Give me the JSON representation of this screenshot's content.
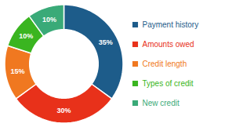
{
  "chart_data": {
    "type": "pie",
    "categories": [
      "Payment history",
      "Amounts owed",
      "Credit length",
      "Types of credit",
      "New credit"
    ],
    "values": [
      35,
      30,
      15,
      10,
      10
    ],
    "value_labels": [
      "35%",
      "30%",
      "15%",
      "10%",
      "10%"
    ],
    "data_labels": true,
    "colors": [
      "#1d5c8a",
      "#e8311a",
      "#f07820",
      "#3ab520",
      "#3aaa78"
    ],
    "legend": "right"
  }
}
